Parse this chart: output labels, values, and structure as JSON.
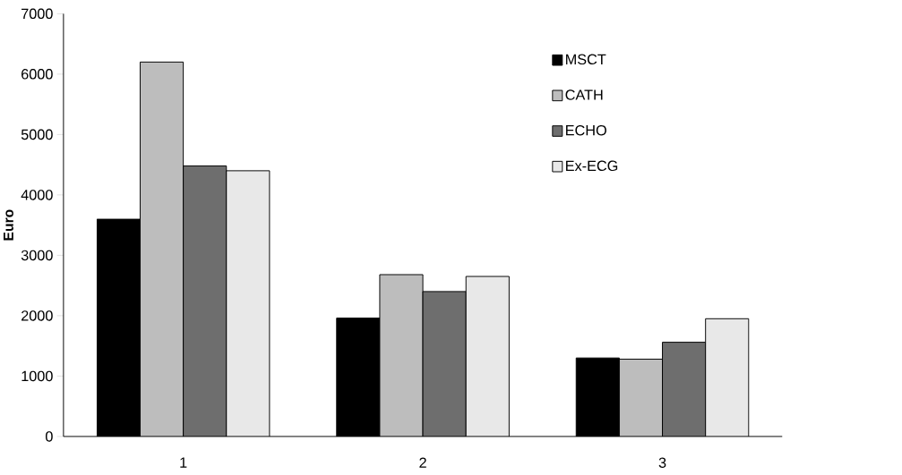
{
  "chart_data": {
    "type": "bar",
    "ylabel": "Euro",
    "categories": [
      "1",
      "2",
      "3"
    ],
    "series": [
      {
        "name": "MSCT",
        "color": "#000000",
        "values": [
          3600,
          1960,
          1300
        ]
      },
      {
        "name": "CATH",
        "color": "#bdbdbd",
        "values": [
          6200,
          2680,
          1280
        ]
      },
      {
        "name": "ECHO",
        "color": "#6e6e6e",
        "values": [
          4480,
          2400,
          1560
        ]
      },
      {
        "name": "Ex-ECG",
        "color": "#e8e8e8",
        "values": [
          4400,
          2650,
          1950
        ]
      }
    ],
    "ylim": [
      0,
      7000
    ],
    "yticks": [
      0,
      1000,
      2000,
      3000,
      4000,
      5000,
      6000,
      7000
    ],
    "legend": "top right",
    "grid": false
  }
}
